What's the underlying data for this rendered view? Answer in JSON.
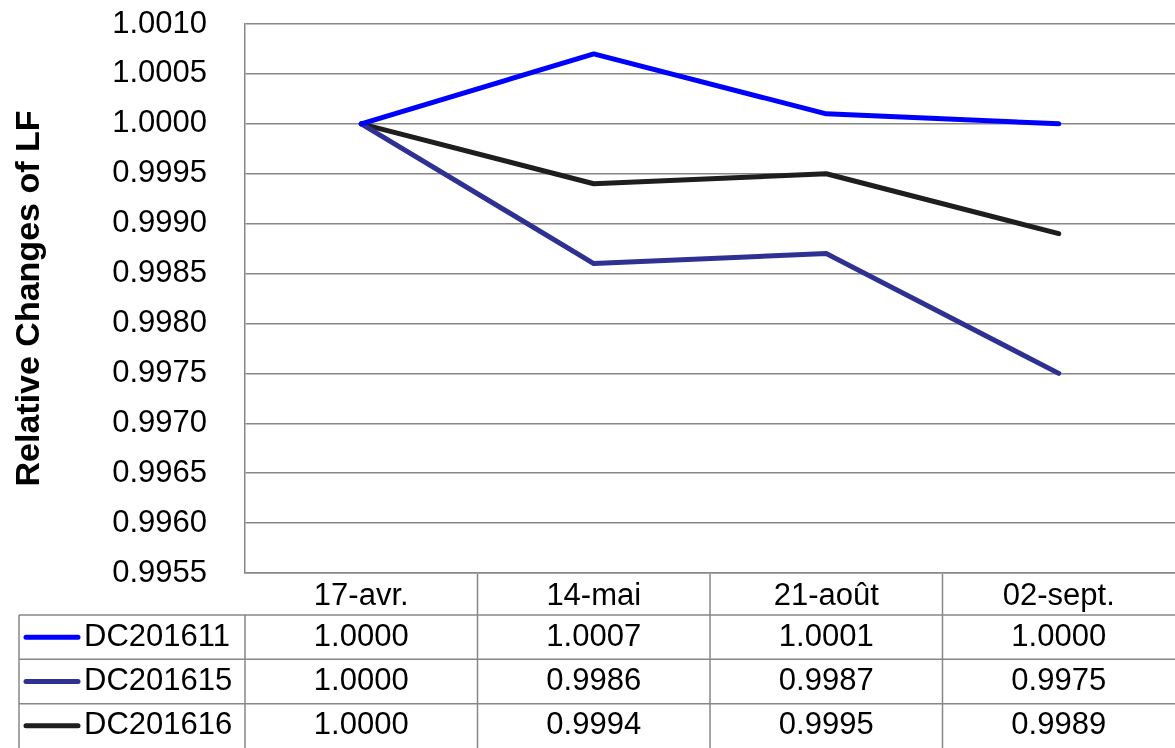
{
  "chart_data": {
    "type": "line",
    "ylabel": "Relative Changes of LF",
    "categories": [
      "17-avr.",
      "14-mai",
      "21-août",
      "02-sept."
    ],
    "series": [
      {
        "name": "DC201611",
        "color": "#0000ff",
        "values": [
          1,
          1.0007,
          1.0001,
          1
        ],
        "value_labels": [
          "1.0000",
          "1.0007",
          "1.0001",
          "1.0000"
        ]
      },
      {
        "name": "DC201615",
        "color": "#2e3192",
        "values": [
          1,
          0.9986,
          0.9987,
          0.9975
        ],
        "value_labels": [
          "1.0000",
          "0.9986",
          "0.9987",
          "0.9975"
        ]
      },
      {
        "name": "DC201616",
        "color": "#1e1e1e",
        "values": [
          1,
          0.9994,
          0.9995,
          0.9989
        ],
        "value_labels": [
          "1.0000",
          "0.9994",
          "0.9995",
          "0.9989"
        ]
      }
    ],
    "ylim": [
      0.9955,
      1.001
    ],
    "yticks": [
      {
        "value": 1.001,
        "label": "1.0010"
      },
      1.0005,
      {
        "value": 1,
        "label": "1.0000"
      },
      0.9995,
      {
        "value": 0.999,
        "label": "0.9990"
      },
      0.9985,
      {
        "value": 0.998,
        "label": "0.9980"
      },
      0.9975,
      {
        "value": 0.997,
        "label": "0.9970"
      },
      0.9965,
      {
        "value": 0.996,
        "label": "0.9960"
      },
      0.9955
    ],
    "grid": "y",
    "legend": "bottom left",
    "marker": "none",
    "line_style": "solid"
  }
}
